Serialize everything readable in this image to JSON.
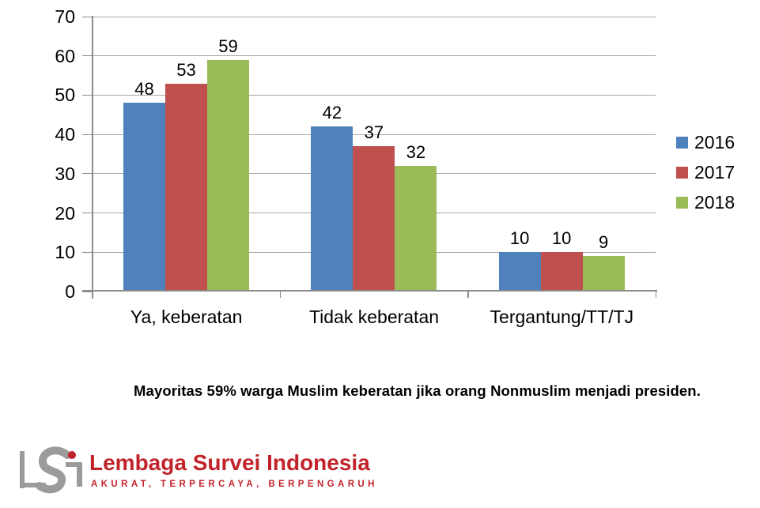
{
  "chart_data": {
    "type": "bar",
    "categories": [
      "Ya, keberatan",
      "Tidak keberatan",
      "Tergantung/TT/TJ"
    ],
    "series": [
      {
        "name": "2016",
        "color": "#4F81BD",
        "values": [
          48,
          42,
          10
        ]
      },
      {
        "name": "2017",
        "color": "#C0504D",
        "values": [
          53,
          37,
          10
        ]
      },
      {
        "name": "2018",
        "color": "#9BBB59",
        "values": [
          59,
          32,
          9
        ]
      }
    ],
    "ylim": [
      0,
      70
    ],
    "yticks": [
      0,
      10,
      20,
      30,
      40,
      50,
      60,
      70
    ],
    "grid": true,
    "bar_value_labels": true,
    "legend_position": "right"
  },
  "caption": "Mayoritas 59% warga Muslim keberatan jika orang Nonmuslim menjadi presiden.",
  "logo": {
    "name": "Lembaga Survei Indonesia",
    "tagline": "AKURAT, TERPERCAYA, BERPENGARUH",
    "red": "#C2232A",
    "gray": "#9B9B9B"
  },
  "colors": {
    "gridline": "#A6A6A6",
    "axis": "#8C8C8C",
    "text": "#000000",
    "background": "#FFFFFF"
  }
}
